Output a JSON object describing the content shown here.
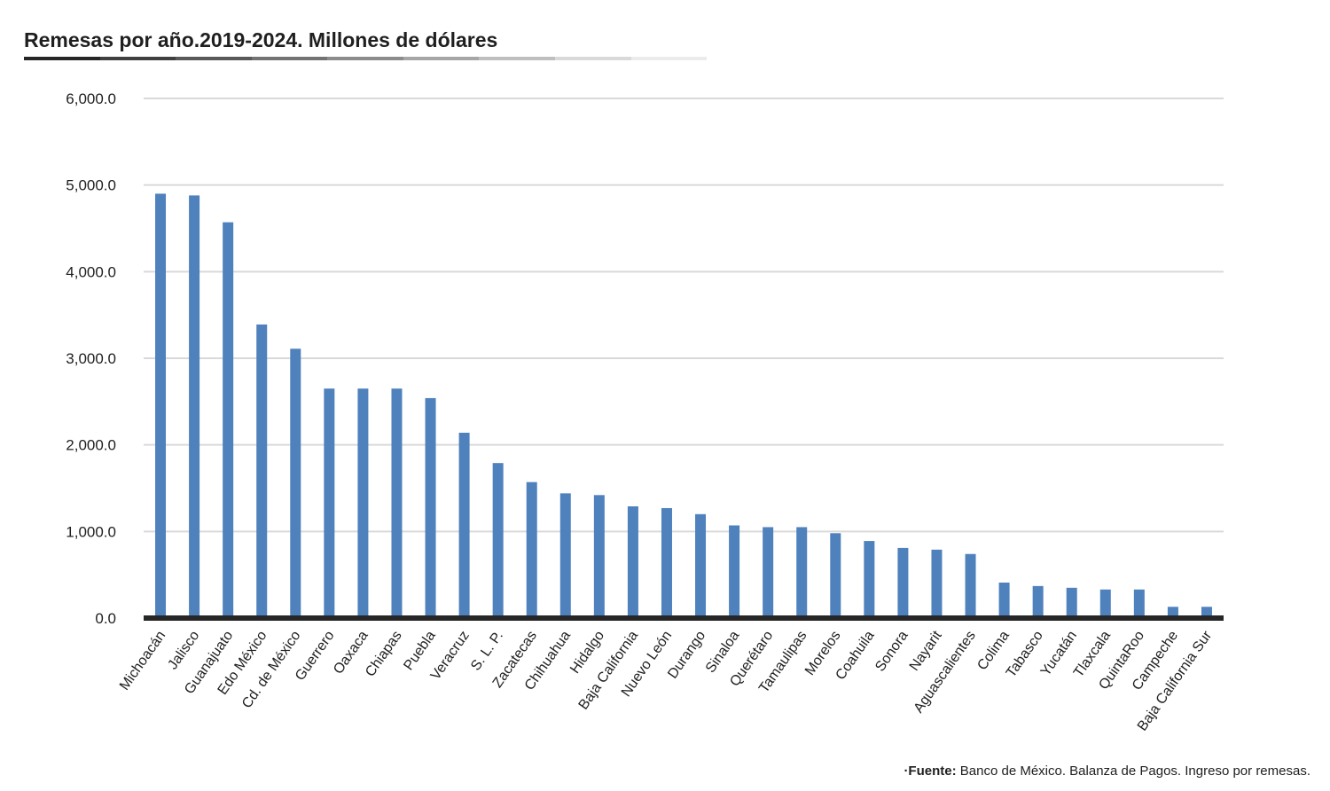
{
  "title": "Remesas por año.2019-2024. Millones de dólares",
  "source": {
    "prefix": "·Fuente:",
    "text": " Banco de México. Balanza de Pagos. Ingreso por remesas."
  },
  "colors": {
    "bar": "#4f81bd",
    "grid": "#d9d9d9",
    "baseline": "#262626",
    "rule": [
      "#262626",
      "#404040",
      "#595959",
      "#737373",
      "#8c8c8c",
      "#a6a6a6",
      "#bfbfbf",
      "#d9d9d9",
      "#ebebeb"
    ]
  },
  "chart_data": {
    "type": "bar",
    "title": "Remesas por año.2019-2024. Millones de dólares",
    "xlabel": "",
    "ylabel": "",
    "ylim": [
      0,
      6000
    ],
    "yticks": [
      0,
      1000,
      2000,
      3000,
      4000,
      5000,
      6000
    ],
    "ytick_labels": [
      "0.0",
      "1,000.0",
      "2,000.0",
      "3,000.0",
      "4,000.0",
      "5,000.0",
      "6,000.0"
    ],
    "grid": true,
    "categories": [
      "Michoacán",
      "Jalisco",
      "Guanajuato",
      "Edo México",
      "Cd. de México",
      "Guerrero",
      "Oaxaca",
      "Chiapas",
      "Puebla",
      "Veracruz",
      "S. L. P.",
      "Zacatecas",
      "Chihuahua",
      "Hidalgo",
      "Baja California",
      "Nuevo León",
      "Durango",
      "Sinaloa",
      "Querétaro",
      "Tamaulipas",
      "Morelos",
      "Coahuila",
      "Sonora",
      "Nayarit",
      "Aguascalientes",
      "Colima",
      "Tabasco",
      "Yucatán",
      "Tlaxcala",
      "QuintaRoo",
      "Campeche",
      "Baja California Sur"
    ],
    "values": [
      4900,
      4880,
      4570,
      3390,
      3110,
      2650,
      2650,
      2650,
      2540,
      2140,
      1790,
      1570,
      1440,
      1420,
      1290,
      1270,
      1200,
      1070,
      1050,
      1050,
      980,
      890,
      810,
      790,
      740,
      410,
      370,
      350,
      330,
      330,
      130,
      130
    ]
  }
}
